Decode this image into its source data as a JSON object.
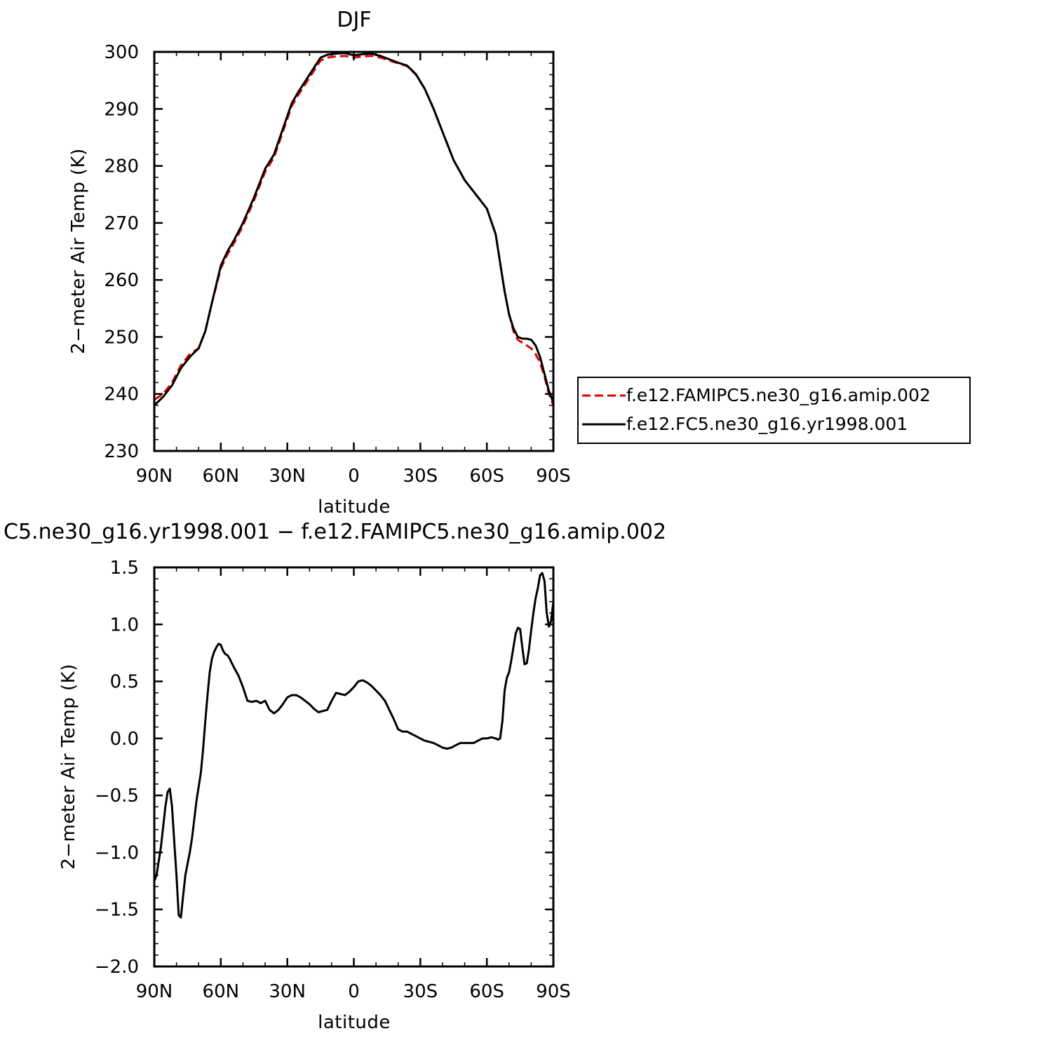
{
  "chart_data": [
    {
      "type": "line",
      "title": "DJF",
      "xlabel": "latitude",
      "ylabel": "2−meter Air Temp (K)",
      "xlim": [
        90,
        -90
      ],
      "ylim": [
        230,
        300
      ],
      "x_ticks": [
        90,
        60,
        30,
        0,
        -30,
        -60,
        -90
      ],
      "x_tick_labels": [
        "90N",
        "60N",
        "30N",
        "0",
        "30S",
        "60S",
        "90S"
      ],
      "y_ticks": [
        230,
        240,
        250,
        260,
        270,
        280,
        290,
        300
      ],
      "y_tick_labels": [
        "230",
        "240",
        "250",
        "260",
        "270",
        "280",
        "290",
        "300"
      ],
      "grid": false,
      "legend": "right",
      "series": [
        {
          "name": "f.e12.FAMIPC5.ne30_g16.amip.002",
          "color": "#e00000",
          "dash": "dashed",
          "x": [
            90,
            86,
            82,
            78,
            74,
            70,
            67,
            64,
            60,
            57,
            54,
            50,
            45,
            40,
            36,
            32,
            28,
            25,
            20,
            15,
            12,
            8,
            4,
            0,
            -4,
            -8,
            -12,
            -16,
            -20,
            -24,
            -28,
            -32,
            -36,
            -40,
            -45,
            -50,
            -55,
            -60,
            -64,
            -66,
            -68,
            -70,
            -72,
            -74,
            -76,
            -78,
            -80,
            -82,
            -84,
            -86,
            -88,
            -90
          ],
          "y": [
            239.0,
            240.0,
            242.0,
            245.0,
            247.0,
            248.0,
            251.0,
            256.0,
            262.0,
            264.5,
            266.5,
            269.5,
            274.0,
            279.0,
            281.5,
            286.0,
            290.5,
            292.5,
            295.5,
            298.5,
            299.0,
            299.2,
            299.3,
            299.0,
            299.2,
            299.3,
            299.0,
            298.5,
            298.0,
            297.5,
            296.0,
            293.5,
            290.0,
            286.0,
            281.0,
            277.5,
            275.0,
            272.5,
            268.0,
            263.0,
            258.0,
            254.0,
            251.0,
            249.5,
            249.0,
            248.5,
            248.0,
            247.0,
            245.5,
            243.0,
            240.0,
            238.0
          ]
        },
        {
          "name": "f.e12.FC5.ne30_g16.yr1998.001",
          "color": "#000000",
          "dash": "solid",
          "x": [
            90,
            86,
            82,
            78,
            74,
            70,
            67,
            64,
            60,
            57,
            54,
            50,
            45,
            40,
            36,
            32,
            28,
            25,
            20,
            15,
            12,
            8,
            4,
            0,
            -4,
            -8,
            -12,
            -16,
            -20,
            -24,
            -28,
            -32,
            -36,
            -40,
            -45,
            -50,
            -55,
            -60,
            -64,
            -66,
            -68,
            -70,
            -72,
            -74,
            -76,
            -78,
            -80,
            -82,
            -84,
            -86,
            -88,
            -90
          ],
          "y": [
            238.0,
            239.5,
            241.5,
            244.5,
            246.5,
            248.0,
            251.0,
            256.0,
            262.5,
            265.0,
            267.0,
            270.0,
            274.5,
            279.5,
            282.0,
            286.5,
            291.0,
            293.0,
            296.0,
            299.0,
            299.5,
            299.7,
            299.8,
            299.4,
            299.6,
            299.7,
            299.3,
            298.7,
            298.1,
            297.6,
            296.1,
            293.5,
            290.0,
            286.0,
            281.0,
            277.5,
            275.0,
            272.5,
            268.0,
            263.0,
            258.0,
            254.0,
            251.5,
            250.0,
            249.7,
            249.7,
            249.5,
            248.5,
            246.5,
            243.5,
            240.5,
            238.5
          ]
        }
      ]
    },
    {
      "type": "line",
      "title": "C5.ne30_g16.yr1998.001 − f.e12.FAMIPC5.ne30_g16.amip.002",
      "xlabel": "latitude",
      "ylabel": "2−meter Air Temp (K)",
      "xlim": [
        90,
        -90
      ],
      "ylim": [
        -2.0,
        1.5
      ],
      "x_ticks": [
        90,
        60,
        30,
        0,
        -30,
        -60,
        -90
      ],
      "x_tick_labels": [
        "90N",
        "60N",
        "30N",
        "0",
        "30S",
        "60S",
        "90S"
      ],
      "y_ticks": [
        -2.0,
        -1.5,
        -1.0,
        -0.5,
        0.0,
        0.5,
        1.0,
        1.5
      ],
      "y_tick_labels": [
        "−2.0",
        "−1.5",
        "−1.0",
        "−0.5",
        "0.0",
        "0.5",
        "1.0",
        "1.5"
      ],
      "grid": false,
      "series": [
        {
          "color": "#000000",
          "dash": "solid",
          "x": [
            90,
            89,
            87,
            85,
            84,
            83,
            82,
            81,
            80,
            79,
            78,
            77,
            76,
            75,
            74,
            73,
            71,
            69,
            68,
            67,
            66,
            65,
            64,
            63,
            62,
            61,
            60,
            59,
            58,
            57,
            56,
            55,
            54,
            52,
            50,
            48,
            46,
            44,
            42,
            40,
            38,
            36,
            34,
            32,
            30,
            28,
            26,
            24,
            22,
            20,
            18,
            16,
            14,
            12,
            10,
            8,
            6,
            4,
            2,
            0,
            -2,
            -4,
            -6,
            -8,
            -10,
            -12,
            -14,
            -16,
            -18,
            -20,
            -22,
            -24,
            -26,
            -28,
            -30,
            -32,
            -34,
            -36,
            -38,
            -40,
            -42,
            -44,
            -46,
            -48,
            -50,
            -52,
            -54,
            -56,
            -58,
            -60,
            -62,
            -64,
            -65,
            -66,
            -67,
            -68,
            -69,
            -70,
            -71,
            -72,
            -73,
            -74,
            -75,
            -76,
            -77,
            -78,
            -79,
            -80,
            -81,
            -82,
            -83,
            -84,
            -85,
            -86,
            -87,
            -88,
            -89,
            -90
          ],
          "y": [
            -1.25,
            -1.2,
            -0.95,
            -0.6,
            -0.47,
            -0.44,
            -0.6,
            -0.9,
            -1.2,
            -1.55,
            -1.57,
            -1.38,
            -1.2,
            -1.1,
            -1.0,
            -0.88,
            -0.55,
            -0.3,
            -0.1,
            0.15,
            0.38,
            0.58,
            0.7,
            0.76,
            0.8,
            0.83,
            0.82,
            0.77,
            0.74,
            0.73,
            0.7,
            0.66,
            0.62,
            0.55,
            0.45,
            0.33,
            0.32,
            0.33,
            0.31,
            0.33,
            0.25,
            0.22,
            0.25,
            0.3,
            0.36,
            0.38,
            0.38,
            0.36,
            0.33,
            0.3,
            0.26,
            0.23,
            0.24,
            0.25,
            0.33,
            0.4,
            0.39,
            0.38,
            0.41,
            0.45,
            0.5,
            0.51,
            0.49,
            0.46,
            0.42,
            0.38,
            0.33,
            0.25,
            0.17,
            0.08,
            0.06,
            0.06,
            0.04,
            0.02,
            0.0,
            -0.02,
            -0.03,
            -0.04,
            -0.06,
            -0.08,
            -0.09,
            -0.08,
            -0.06,
            -0.04,
            -0.04,
            -0.04,
            -0.04,
            -0.02,
            0.0,
            0.0,
            0.01,
            0.0,
            -0.01,
            0.0,
            0.15,
            0.42,
            0.53,
            0.58,
            0.68,
            0.8,
            0.92,
            0.97,
            0.96,
            0.8,
            0.65,
            0.66,
            0.78,
            0.95,
            1.1,
            1.23,
            1.32,
            1.43,
            1.45,
            1.38,
            1.1,
            0.98,
            1.03,
            1.2
          ]
        }
      ]
    }
  ]
}
